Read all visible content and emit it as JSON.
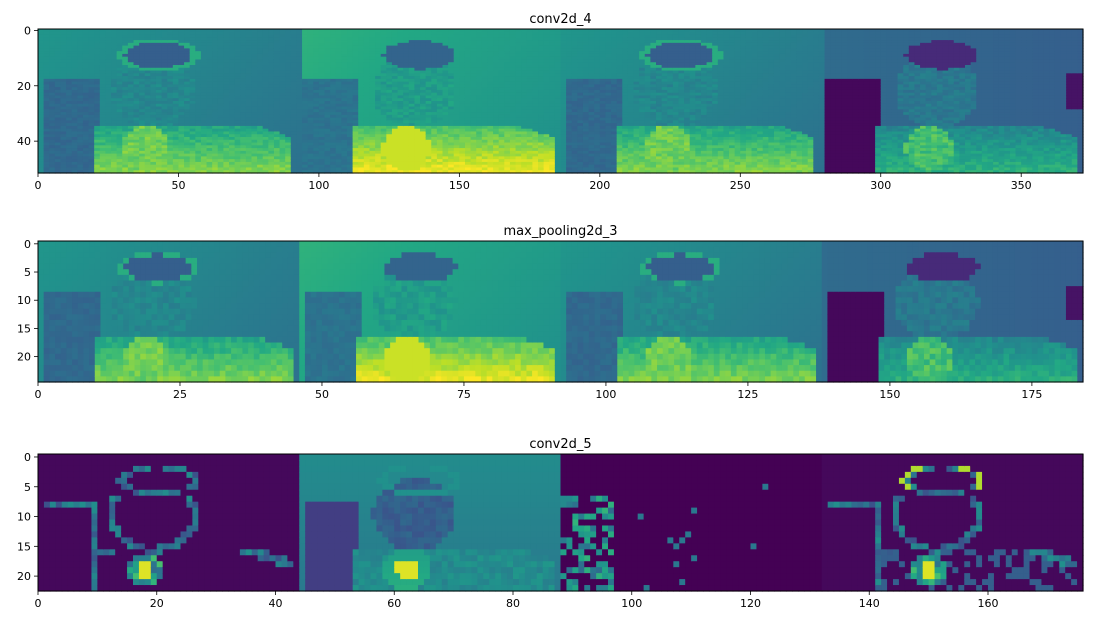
{
  "figure": {
    "colormap": "viridis",
    "colors": {
      "viridis_dark": "#440154",
      "viridis_mid": "#21918c",
      "viridis_bright": "#fde725",
      "axis": "#000000",
      "background": "#ffffff"
    }
  },
  "chart_data": [
    {
      "type": "heatmap",
      "title": "conv2d_4",
      "xlabel": "",
      "ylabel": "",
      "xlim": [
        0,
        372
      ],
      "ylim": [
        51.5,
        -0.5
      ],
      "x_ticks": [
        0,
        50,
        100,
        150,
        200,
        250,
        300,
        350
      ],
      "y_ticks": [
        0,
        20,
        40
      ],
      "channels": 4,
      "description_of_content": "4 feature maps tiled side by side (~93 px each, 52 rows)",
      "tile_width": 93,
      "tile_styles": [
        "mid",
        "bright",
        "mid",
        "dark"
      ]
    },
    {
      "type": "heatmap",
      "title": "max_pooling2d_3",
      "xlabel": "",
      "ylabel": "",
      "xlim": [
        0,
        184
      ],
      "ylim": [
        24.5,
        -0.5
      ],
      "x_ticks": [
        0,
        25,
        50,
        75,
        100,
        125,
        150,
        175
      ],
      "y_ticks": [
        0,
        5,
        10,
        15,
        20
      ],
      "channels": 4,
      "tile_width": 46,
      "tile_styles": [
        "mid",
        "bright",
        "mid",
        "dark"
      ]
    },
    {
      "type": "heatmap",
      "title": "conv2d_5",
      "xlabel": "",
      "ylabel": "",
      "xlim": [
        0,
        176
      ],
      "ylim": [
        22.5,
        -0.5
      ],
      "x_ticks": [
        0,
        20,
        40,
        60,
        80,
        100,
        120,
        140,
        160
      ],
      "y_ticks": [
        0,
        5,
        10,
        15,
        20
      ],
      "channels": 4,
      "tile_width": 44,
      "tile_styles": [
        "edge",
        "soft",
        "sparse",
        "edge2"
      ]
    }
  ]
}
